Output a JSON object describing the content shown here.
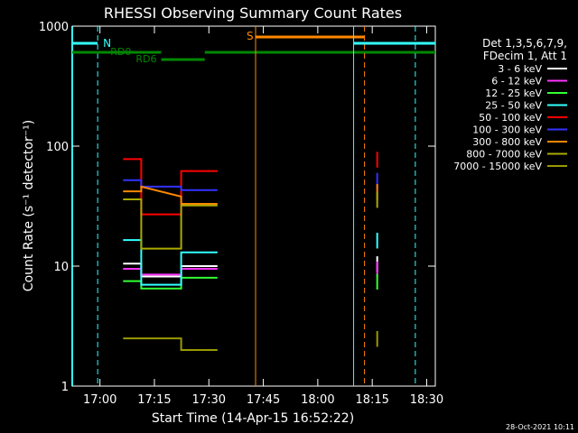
{
  "chart_data": {
    "type": "line",
    "title": "RHESSI Observing Summary Count Rates",
    "xlabel": "Start Time (14-Apr-15 16:52:22)",
    "ylabel": "Count Rate (s⁻¹ detector⁻¹)",
    "xlim_minutes_after_start": [
      0,
      100.0
    ],
    "ylim": [
      1,
      1000
    ],
    "yscale": "log",
    "x_ticks": [
      "17:00",
      "17:15",
      "17:30",
      "17:45",
      "18:00",
      "18:15",
      "18:30"
    ],
    "x_tick_minutes": [
      7.63,
      22.63,
      37.63,
      52.63,
      67.63,
      82.63,
      97.63
    ],
    "y_ticks": [
      "1",
      "10",
      "100",
      "1000"
    ],
    "y_tick_values": [
      1,
      10,
      100,
      1000
    ],
    "legend_header": [
      "Det 1,3,5,6,7,9,",
      "FDecim 1, Att 1"
    ],
    "legend_position": "right",
    "timestamp": "28-Oct-2021 10:11",
    "series": [
      {
        "name": "3 - 6 keV",
        "color": "#ffffff",
        "x_minutes": [
          14,
          19,
          19,
          30,
          30,
          40
        ],
        "values": [
          10.5,
          10.5,
          8.2,
          8.2,
          10,
          10
        ]
      },
      {
        "name": "6 - 12 keV",
        "color": "#ff33ff",
        "x_minutes": [
          14,
          19,
          19,
          30,
          30,
          40
        ],
        "values": [
          9.5,
          9.5,
          8.5,
          8.5,
          9.5,
          9.5
        ]
      },
      {
        "name": "12 - 25 keV",
        "color": "#33ff33",
        "x_minutes": [
          14,
          19,
          19,
          30,
          30,
          40
        ],
        "values": [
          7.5,
          7.5,
          6.5,
          6.5,
          8,
          8
        ]
      },
      {
        "name": "25 - 50 keV",
        "color": "#33ffff",
        "x_minutes": [
          14,
          19,
          19,
          30,
          30,
          40
        ],
        "values": [
          16.5,
          16.5,
          7,
          7,
          13,
          13
        ]
      },
      {
        "name": "50 - 100 keV",
        "color": "#ff0000",
        "x_minutes": [
          14,
          19,
          19,
          30,
          30,
          40
        ],
        "values": [
          78,
          78,
          27,
          27,
          62,
          62
        ]
      },
      {
        "name": "100 - 300 keV",
        "color": "#3333ff",
        "x_minutes": [
          14,
          19,
          19,
          30,
          30,
          40
        ],
        "values": [
          52,
          52,
          46,
          46,
          43,
          43
        ]
      },
      {
        "name": "300 - 800 keV",
        "color": "#ff8800",
        "x_minutes": [
          14,
          19,
          19,
          30,
          30,
          40
        ],
        "values": [
          42,
          42,
          46,
          38,
          33,
          33
        ]
      },
      {
        "name": "800 - 7000 keV",
        "color": "#aaaa00",
        "x_minutes": [
          14,
          19,
          19,
          30,
          30,
          40
        ],
        "values": [
          36,
          36,
          14,
          14,
          32,
          32
        ]
      },
      {
        "name": "7000 - 15000 keV",
        "color": "#999900",
        "x_minutes": [
          14,
          19,
          19,
          30,
          30,
          40
        ],
        "values": [
          2.5,
          2.5,
          2.5,
          2.5,
          2,
          2
        ]
      }
    ],
    "late_spike_minute": 84,
    "annotations": [
      {
        "label": "N",
        "color": "#33ffff"
      },
      {
        "label": "RD0",
        "color": "#008800"
      },
      {
        "label": "RD6",
        "color": "#008800"
      },
      {
        "label": "S",
        "color": "#ff8800"
      }
    ]
  }
}
